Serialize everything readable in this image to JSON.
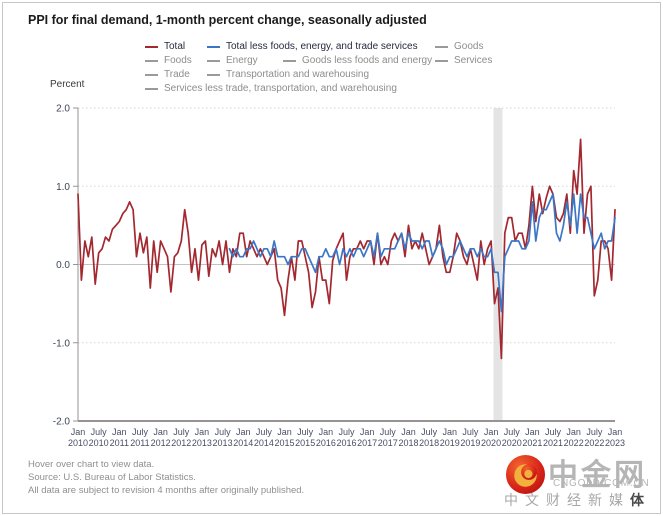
{
  "card": {
    "title": "PPI for final demand, 1-month percent change, seasonally adjusted",
    "footer_lines": [
      "Hover over chart to view data.",
      "Source: U.S. Bureau of Labor Statistics.",
      "All data are subject to revision 4 months after originally published."
    ]
  },
  "watermark": {
    "cn_name": "中金网",
    "domain": "CNGOLD.COM.CN",
    "tagline": "中文财经新媒",
    "tagline_suffix": "体",
    "logo_red": "#d62118",
    "logo_gold": "#f2b13c"
  },
  "chart_data": {
    "type": "line",
    "title": "PPI for final demand, 1-month percent change, seasonally adjusted",
    "xlabel": "",
    "ylabel": "Percent",
    "ylim": [
      -2.0,
      2.0
    ],
    "y_ticks": [
      "2.0",
      "1.0",
      "0.0",
      "-1.0",
      "-2.0"
    ],
    "y_gridline_values": [
      2.0,
      1.0,
      -1.0
    ],
    "y_zero_value": 0.0,
    "grid": "horizontal-dotted",
    "x_start": "Jan 2010",
    "x_end": "Jan 2023",
    "months_total": 157,
    "x_ticks": [
      "Jan 2010",
      "July 2010",
      "Jan 2011",
      "July 2011",
      "Jan 2012",
      "July 2012",
      "Jan 2013",
      "July 2013",
      "Jan 2014",
      "July 2014",
      "Jan 2015",
      "July 2015",
      "Jan 2016",
      "July 2016",
      "Jan 2017",
      "July 2017",
      "Jan 2018",
      "July 2018",
      "Jan 2019",
      "July 2019",
      "Jan 2020",
      "July 2020",
      "Jan 2021",
      "July 2021",
      "Jan 2022",
      "July 2022",
      "Jan 2023"
    ],
    "recession_band": {
      "from_month_index": 121,
      "to_month_index": 123,
      "color": "#e4e4e4",
      "note": "Feb 2020 - Apr 2020 recession shading"
    },
    "series": [
      {
        "name": "Total",
        "color": "#a3282f",
        "start_index": 0,
        "values": [
          0.9,
          -0.2,
          0.3,
          0.1,
          0.35,
          -0.25,
          0.15,
          0.2,
          0.35,
          0.3,
          0.45,
          0.5,
          0.55,
          0.65,
          0.7,
          0.8,
          0.7,
          0.1,
          0.4,
          0.15,
          0.35,
          -0.3,
          0.3,
          -0.1,
          0.3,
          0.2,
          0.1,
          -0.35,
          0.1,
          0.15,
          0.3,
          0.7,
          0.4,
          -0.1,
          0.2,
          -0.2,
          0.25,
          0.3,
          -0.15,
          0.2,
          0.1,
          0.3,
          0.0,
          0.3,
          -0.1,
          0.2,
          0.1,
          0.4,
          0.4,
          0.1,
          0.3,
          0.2,
          0.1,
          0.2,
          0.1,
          0.0,
          0.1,
          0.2,
          -0.2,
          -0.3,
          -0.65,
          -0.2,
          0.1,
          -0.2,
          0.3,
          0.3,
          0.1,
          -0.1,
          -0.55,
          -0.35,
          0.1,
          -0.2,
          -0.2,
          -0.5,
          0.05,
          0.2,
          0.3,
          0.4,
          -0.2,
          0.1,
          0.2,
          0.2,
          0.3,
          0.2,
          0.3,
          0.3,
          0.0,
          0.4,
          0.0,
          0.1,
          0.0,
          0.3,
          0.4,
          0.3,
          0.4,
          0.1,
          0.5,
          0.2,
          0.3,
          0.2,
          0.4,
          0.2,
          0.0,
          0.1,
          0.2,
          0.5,
          0.1,
          -0.1,
          -0.1,
          0.1,
          0.4,
          0.3,
          0.1,
          0.0,
          0.2,
          0.0,
          -0.2,
          0.3,
          0.0,
          0.2,
          0.3,
          -0.5,
          -0.3,
          -1.2,
          0.4,
          0.6,
          0.6,
          0.3,
          0.4,
          0.4,
          0.2,
          0.5,
          1.0,
          0.55,
          0.9,
          0.65,
          0.85,
          1.0,
          0.9,
          0.6,
          0.55,
          0.65,
          0.9,
          0.4,
          1.2,
          0.9,
          1.6,
          0.4,
          0.9,
          1.0,
          -0.4,
          -0.2,
          0.3,
          0.3,
          0.2,
          -0.2,
          0.7
        ]
      },
      {
        "name": "Total less foods, energy, and trade services",
        "color": "#3b76c6",
        "start_index": 44,
        "values": [
          0.2,
          0.1,
          0.2,
          0.1,
          0.1,
          0.2,
          0.2,
          0.3,
          0.2,
          0.1,
          0.2,
          0.2,
          0.1,
          0.3,
          0.1,
          0.1,
          0.1,
          0.0,
          0.1,
          0.1,
          0.1,
          0.2,
          0.2,
          0.1,
          0.0,
          -0.1,
          0.1,
          0.1,
          0.2,
          0.1,
          0.1,
          0.2,
          0.0,
          0.2,
          0.1,
          0.2,
          0.1,
          0.2,
          0.2,
          0.1,
          0.2,
          0.3,
          0.1,
          0.4,
          0.1,
          0.2,
          0.2,
          0.2,
          0.2,
          0.3,
          0.4,
          0.2,
          0.4,
          0.3,
          0.3,
          0.3,
          0.2,
          0.3,
          0.3,
          0.1,
          0.2,
          0.3,
          0.2,
          0.0,
          0.1,
          0.1,
          0.2,
          0.3,
          0.2,
          0.1,
          0.2,
          0.2,
          0.1,
          0.2,
          0.1,
          0.1,
          0.2,
          -0.1,
          -0.1,
          -0.6,
          0.1,
          0.2,
          0.3,
          0.3,
          0.3,
          0.2,
          0.2,
          0.3,
          0.8,
          0.3,
          0.6,
          0.7,
          0.7,
          0.8,
          0.9,
          0.4,
          0.3,
          0.5,
          0.8,
          0.5,
          0.9,
          0.4,
          0.9,
          0.6,
          0.6,
          0.4,
          0.2,
          0.3,
          0.4,
          0.2,
          0.3,
          0.3,
          0.6
        ]
      }
    ],
    "legend": {
      "position": "top",
      "active_text_color": "#252b3f",
      "inactive_text_color": "#8d8d8d",
      "inactive_dash_color": "#9a9a9a",
      "rows": [
        [
          {
            "label": "Total",
            "active": true,
            "color": "#a3282f"
          },
          {
            "label": "Total less foods, energy, and trade services",
            "active": true,
            "color": "#3b76c6"
          },
          {
            "label": "Goods",
            "active": false
          }
        ],
        [
          {
            "label": "Foods",
            "active": false
          },
          {
            "label": "Energy",
            "active": false
          },
          {
            "label": "Goods less foods and energy",
            "active": false
          },
          {
            "label": "Services",
            "active": false
          }
        ],
        [
          {
            "label": "Trade",
            "active": false
          },
          {
            "label": "Transportation and warehousing",
            "active": false
          }
        ],
        [
          {
            "label": "Services less trade, transportation, and warehousing",
            "active": false
          }
        ]
      ]
    },
    "axis_colors": {
      "tick_label": "#465063",
      "gridline_dotted": "#d6d6d6",
      "zero_line": "#c3c3c3",
      "axis_line": "#949494"
    }
  }
}
